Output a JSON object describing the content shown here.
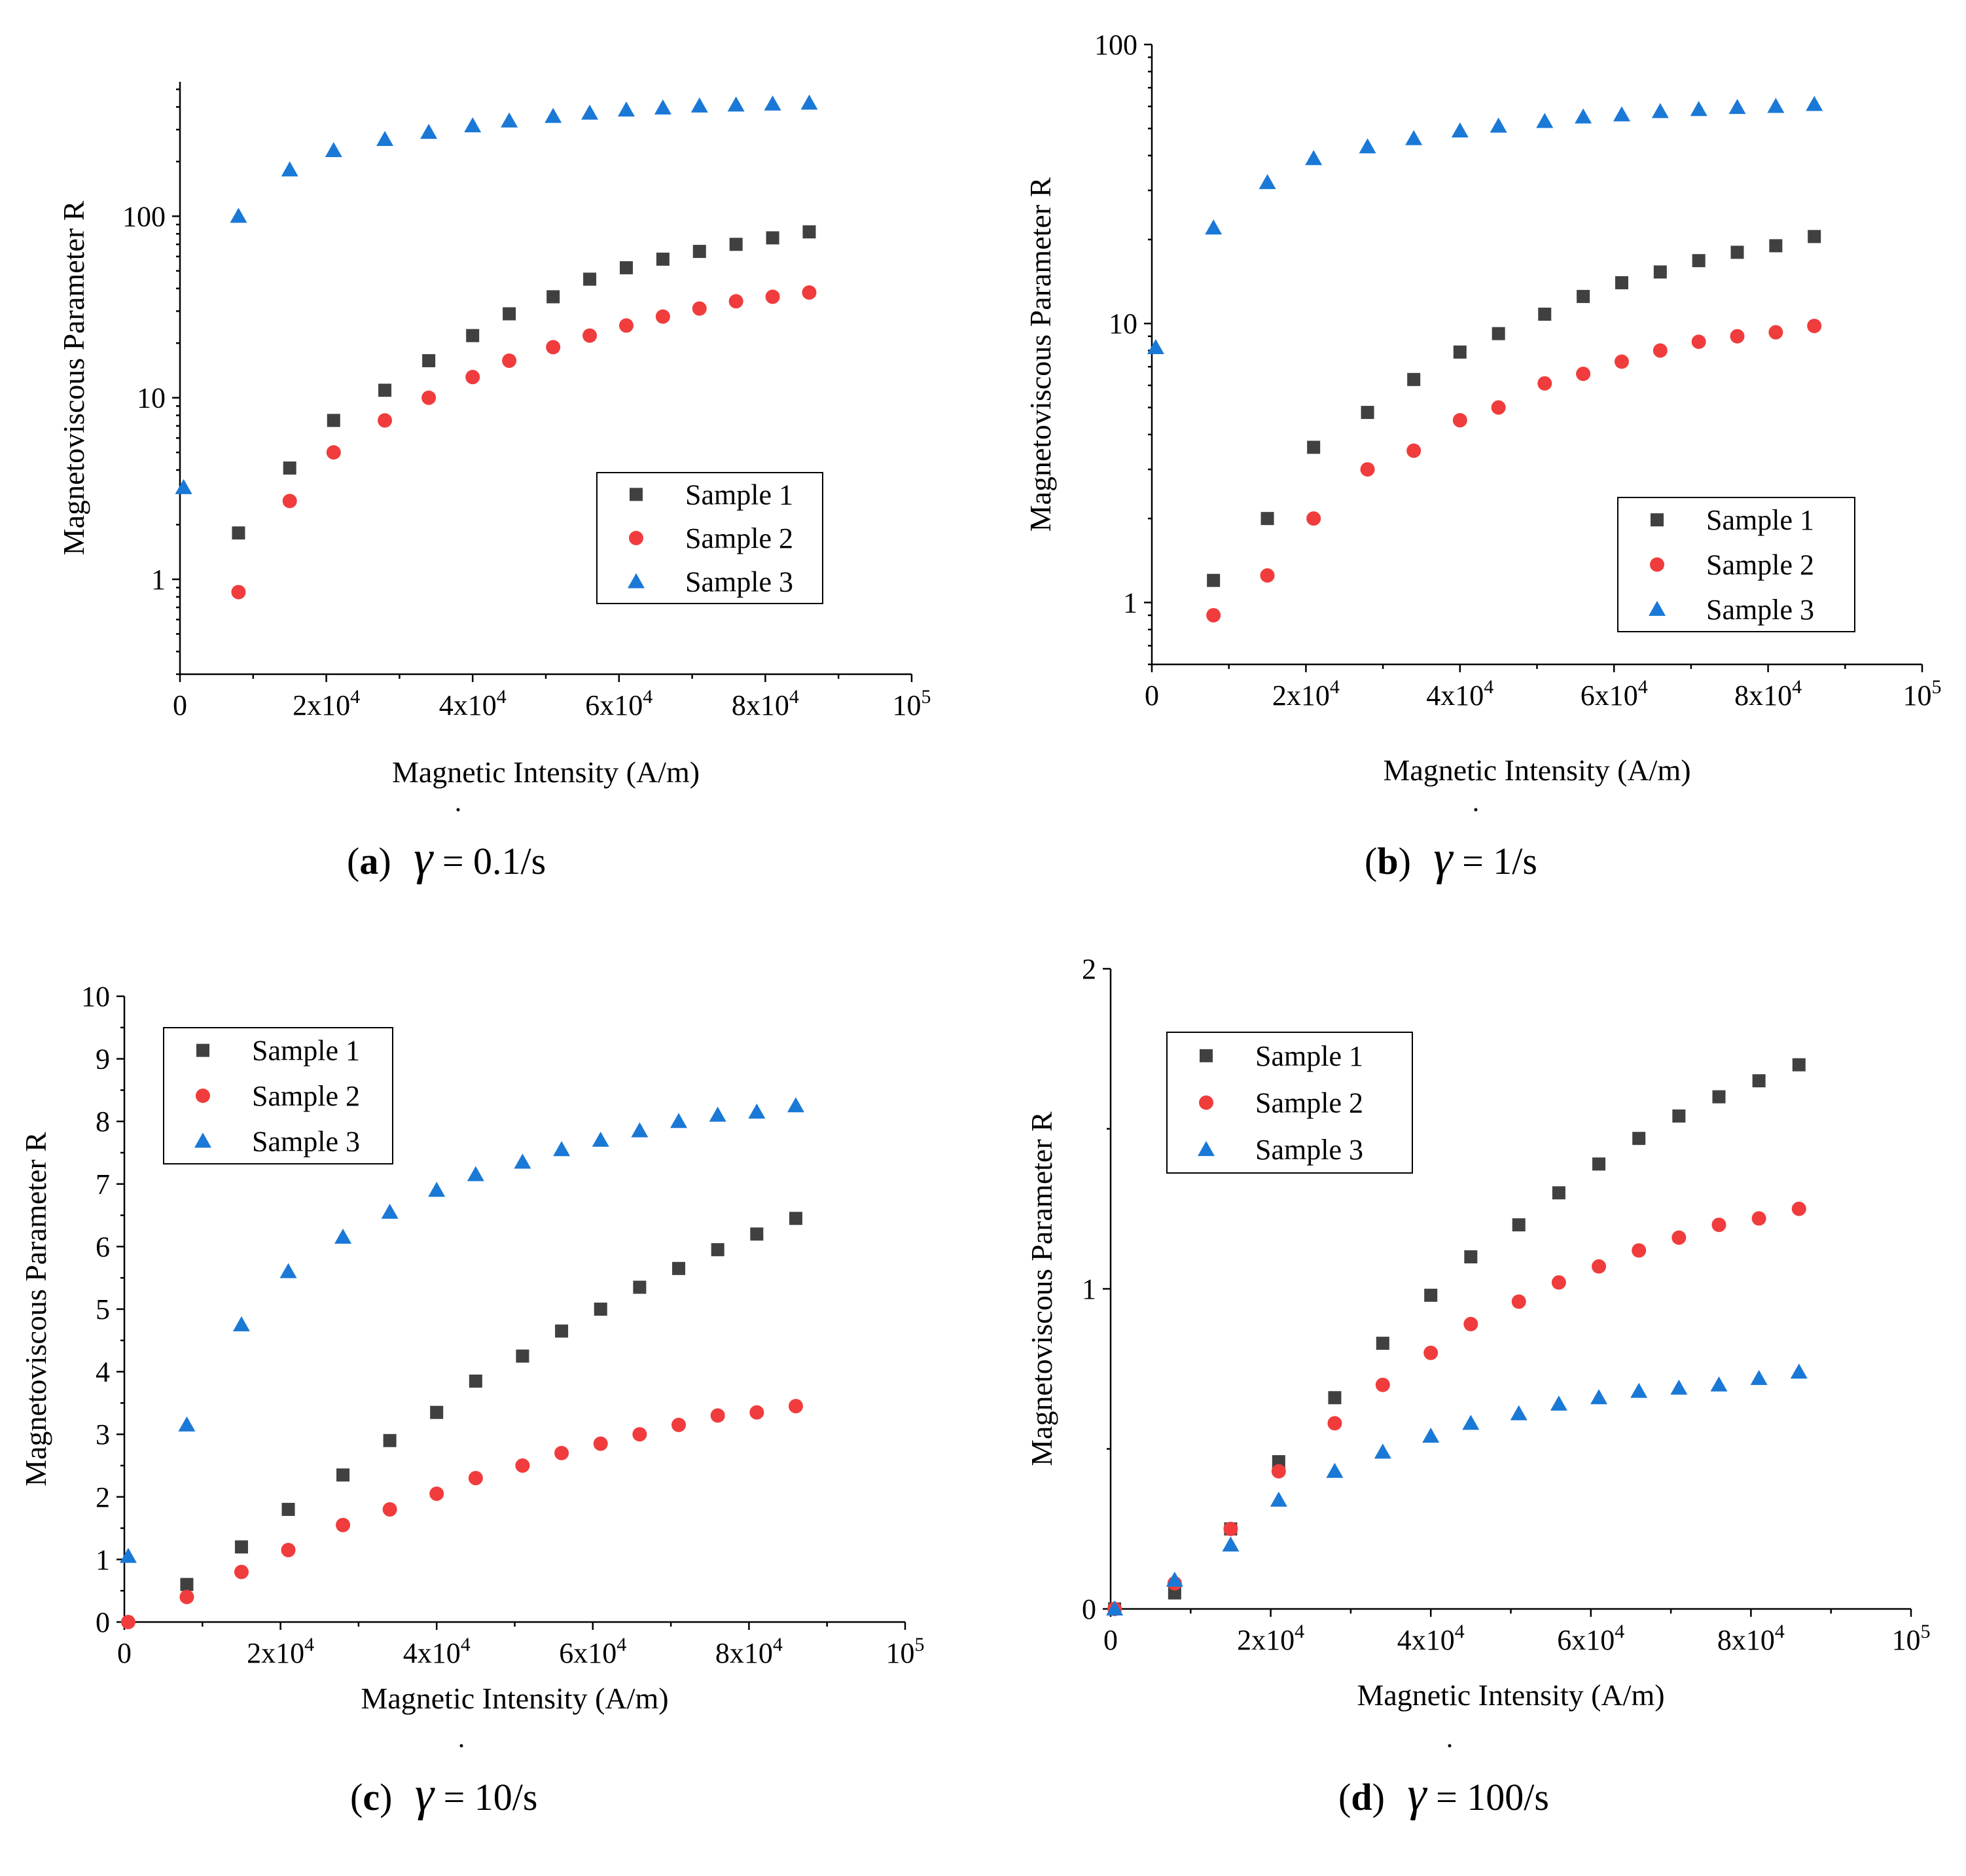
{
  "figure": {
    "panels": [
      {
        "tag": "(a)",
        "symbol": "γ",
        "suffix": " = 0.1/s"
      },
      {
        "tag": "(b)",
        "symbol": "γ",
        "suffix": " = 1/s"
      },
      {
        "tag": "(c)",
        "symbol": "γ",
        "suffix": " = 10/s"
      },
      {
        "tag": "(d)",
        "symbol": "γ",
        "suffix": " = 100/s"
      }
    ]
  },
  "colors": {
    "sample1": "#404040",
    "sample2": "#f03c3c",
    "sample3": "#1a78d6"
  },
  "chart_data": [
    {
      "type": "scatter",
      "title": "γ = 0.1/s",
      "xlabel": "Magnetic Intensity (A/m)",
      "ylabel": "Magnetoviscous Parameter R",
      "yscale": "log",
      "xlim": [
        0,
        100000
      ],
      "ylim": [
        0.3,
        550
      ],
      "xticks": [
        {
          "v": 0,
          "m": "0"
        },
        {
          "v": 20000,
          "m": "2x10",
          "e": "4"
        },
        {
          "v": 40000,
          "m": "4x10",
          "e": "4"
        },
        {
          "v": 60000,
          "m": "6x10",
          "e": "4"
        },
        {
          "v": 80000,
          "m": "8x10",
          "e": "4"
        },
        {
          "v": 100000,
          "m": "10",
          "e": "5"
        }
      ],
      "yticks": [
        {
          "v": 1,
          "m": "1"
        },
        {
          "v": 10,
          "m": "10"
        },
        {
          "v": 100,
          "m": "100"
        }
      ],
      "legend": "lower-right",
      "series": [
        {
          "name": "Sample 1",
          "marker": "square",
          "color": "#404040",
          "x": [
            8000,
            15000,
            21000,
            28000,
            34000,
            40000,
            45000,
            51000,
            56000,
            61000,
            66000,
            71000,
            76000,
            81000,
            86000
          ],
          "y": [
            1.8,
            4.1,
            7.5,
            11,
            16,
            22,
            29,
            36,
            45,
            52,
            58,
            64,
            70,
            76,
            82
          ]
        },
        {
          "name": "Sample 2",
          "marker": "circle",
          "color": "#f03c3c",
          "x": [
            8000,
            15000,
            21000,
            28000,
            34000,
            40000,
            45000,
            51000,
            56000,
            61000,
            66000,
            71000,
            76000,
            81000,
            86000
          ],
          "y": [
            0.85,
            2.7,
            5,
            7.5,
            10,
            13,
            16,
            19,
            22,
            25,
            28,
            31,
            34,
            36,
            38
          ]
        },
        {
          "name": "Sample 3",
          "marker": "triangle",
          "color": "#1a78d6",
          "x": [
            500,
            8000,
            15000,
            21000,
            28000,
            34000,
            40000,
            45000,
            51000,
            56000,
            61000,
            66000,
            71000,
            76000,
            81000,
            86000
          ],
          "y": [
            3.2,
            100,
            180,
            230,
            265,
            290,
            315,
            335,
            355,
            370,
            385,
            395,
            405,
            410,
            415,
            420
          ]
        }
      ]
    },
    {
      "type": "scatter",
      "title": "γ = 1/s",
      "xlabel": "Magnetic Intensity (A/m)",
      "ylabel": "Magnetoviscous Parameter R",
      "yscale": "log",
      "xlim": [
        0,
        100000
      ],
      "ylim": [
        0.6,
        100
      ],
      "xticks": [
        {
          "v": 0,
          "m": "0"
        },
        {
          "v": 20000,
          "m": "2x10",
          "e": "4"
        },
        {
          "v": 40000,
          "m": "4x10",
          "e": "4"
        },
        {
          "v": 60000,
          "m": "6x10",
          "e": "4"
        },
        {
          "v": 80000,
          "m": "8x10",
          "e": "4"
        },
        {
          "v": 100000,
          "m": "10",
          "e": "5"
        }
      ],
      "yticks": [
        {
          "v": 1,
          "m": "1"
        },
        {
          "v": 10,
          "m": "10"
        },
        {
          "v": 100,
          "m": "100"
        }
      ],
      "legend": "lower-right",
      "series": [
        {
          "name": "Sample 1",
          "marker": "square",
          "color": "#404040",
          "x": [
            8000,
            15000,
            21000,
            28000,
            34000,
            40000,
            45000,
            51000,
            56000,
            61000,
            66000,
            71000,
            76000,
            81000,
            86000
          ],
          "y": [
            1.2,
            2,
            3.6,
            4.8,
            6.3,
            7.9,
            9.2,
            10.8,
            12.5,
            14,
            15.3,
            16.8,
            18,
            19,
            20.5
          ]
        },
        {
          "name": "Sample 2",
          "marker": "circle",
          "color": "#f03c3c",
          "x": [
            8000,
            15000,
            21000,
            28000,
            34000,
            40000,
            45000,
            51000,
            56000,
            61000,
            66000,
            71000,
            76000,
            81000,
            86000
          ],
          "y": [
            0.9,
            1.25,
            2,
            3,
            3.5,
            4.5,
            5,
            6.1,
            6.6,
            7.3,
            8,
            8.6,
            9,
            9.3,
            9.8
          ]
        },
        {
          "name": "Sample 3",
          "marker": "triangle",
          "color": "#1a78d6",
          "x": [
            500,
            8000,
            15000,
            21000,
            28000,
            34000,
            40000,
            45000,
            51000,
            56000,
            61000,
            66000,
            71000,
            76000,
            81000,
            86000
          ],
          "y": [
            8.2,
            22,
            32,
            39,
            43,
            46,
            49,
            51,
            53,
            55,
            56,
            57.5,
            58.5,
            59.5,
            60,
            61
          ]
        }
      ]
    },
    {
      "type": "scatter",
      "title": "γ = 10/s",
      "xlabel": "Magnetic Intensity (A/m)",
      "ylabel": "Magnetoviscous Parameter R",
      "yscale": "linear",
      "xlim": [
        0,
        100000
      ],
      "ylim": [
        0,
        10
      ],
      "xticks": [
        {
          "v": 0,
          "m": "0"
        },
        {
          "v": 20000,
          "m": "2x10",
          "e": "4"
        },
        {
          "v": 40000,
          "m": "4x10",
          "e": "4"
        },
        {
          "v": 60000,
          "m": "6x10",
          "e": "4"
        },
        {
          "v": 80000,
          "m": "8x10",
          "e": "4"
        },
        {
          "v": 100000,
          "m": "10",
          "e": "5"
        }
      ],
      "yticks": [
        {
          "v": 0,
          "m": "0"
        },
        {
          "v": 1,
          "m": "1"
        },
        {
          "v": 2,
          "m": "2"
        },
        {
          "v": 3,
          "m": "3"
        },
        {
          "v": 4,
          "m": "4"
        },
        {
          "v": 5,
          "m": "5"
        },
        {
          "v": 6,
          "m": "6"
        },
        {
          "v": 7,
          "m": "7"
        },
        {
          "v": 8,
          "m": "8"
        },
        {
          "v": 9,
          "m": "9"
        },
        {
          "v": 10,
          "m": "10"
        }
      ],
      "legend": "upper-left",
      "series": [
        {
          "name": "Sample 1",
          "marker": "square",
          "color": "#404040",
          "x": [
            8000,
            15000,
            21000,
            28000,
            34000,
            40000,
            45000,
            51000,
            56000,
            61000,
            66000,
            71000,
            76000,
            81000,
            86000
          ],
          "y": [
            0.6,
            1.2,
            1.8,
            2.35,
            2.9,
            3.35,
            3.85,
            4.25,
            4.65,
            5,
            5.35,
            5.65,
            5.95,
            6.2,
            6.45
          ]
        },
        {
          "name": "Sample 2",
          "marker": "circle",
          "color": "#f03c3c",
          "x": [
            500,
            8000,
            15000,
            21000,
            28000,
            34000,
            40000,
            45000,
            51000,
            56000,
            61000,
            66000,
            71000,
            76000,
            81000,
            86000
          ],
          "y": [
            0,
            0.4,
            0.8,
            1.15,
            1.55,
            1.8,
            2.05,
            2.3,
            2.5,
            2.7,
            2.85,
            3,
            3.15,
            3.3,
            3.35,
            3.45
          ]
        },
        {
          "name": "Sample 3",
          "marker": "triangle",
          "color": "#1a78d6",
          "x": [
            500,
            8000,
            15000,
            21000,
            28000,
            34000,
            40000,
            45000,
            51000,
            56000,
            61000,
            66000,
            71000,
            76000,
            81000,
            86000
          ],
          "y": [
            1.05,
            3.15,
            4.75,
            5.6,
            6.15,
            6.55,
            6.9,
            7.15,
            7.35,
            7.55,
            7.7,
            7.85,
            8,
            8.1,
            8.15,
            8.25
          ]
        }
      ]
    },
    {
      "type": "scatter",
      "title": "γ = 100/s",
      "xlabel": "Magnetic Intensity (A/m)",
      "ylabel": "Magnetoviscous Parameter R",
      "yscale": "linear",
      "xlim": [
        0,
        100000
      ],
      "ylim": [
        0,
        2
      ],
      "xticks": [
        {
          "v": 0,
          "m": "0"
        },
        {
          "v": 20000,
          "m": "2x10",
          "e": "4"
        },
        {
          "v": 40000,
          "m": "4x10",
          "e": "4"
        },
        {
          "v": 60000,
          "m": "6x10",
          "e": "4"
        },
        {
          "v": 80000,
          "m": "8x10",
          "e": "4"
        },
        {
          "v": 100000,
          "m": "10",
          "e": "5"
        }
      ],
      "yticks": [
        {
          "v": 0,
          "m": "0"
        },
        {
          "v": 1,
          "m": "1"
        },
        {
          "v": 2,
          "m": "2"
        }
      ],
      "legend": "upper-left",
      "series": [
        {
          "name": "Sample 1",
          "marker": "square",
          "color": "#404040",
          "x": [
            500,
            8000,
            15000,
            21000,
            28000,
            34000,
            40000,
            45000,
            51000,
            56000,
            61000,
            66000,
            71000,
            76000,
            81000,
            86000
          ],
          "y": [
            0,
            0.05,
            0.25,
            0.46,
            0.66,
            0.83,
            0.98,
            1.1,
            1.2,
            1.3,
            1.39,
            1.47,
            1.54,
            1.6,
            1.65,
            1.7
          ]
        },
        {
          "name": "Sample 2",
          "marker": "circle",
          "color": "#f03c3c",
          "x": [
            500,
            8000,
            15000,
            21000,
            28000,
            34000,
            40000,
            45000,
            51000,
            56000,
            61000,
            66000,
            71000,
            76000,
            81000,
            86000
          ],
          "y": [
            0,
            0.08,
            0.25,
            0.43,
            0.58,
            0.7,
            0.8,
            0.89,
            0.96,
            1.02,
            1.07,
            1.12,
            1.16,
            1.2,
            1.22,
            1.25
          ]
        },
        {
          "name": "Sample 3",
          "marker": "triangle",
          "color": "#1a78d6",
          "x": [
            500,
            8000,
            15000,
            21000,
            28000,
            34000,
            40000,
            45000,
            51000,
            56000,
            61000,
            66000,
            71000,
            76000,
            81000,
            86000
          ],
          "y": [
            0,
            0.09,
            0.2,
            0.34,
            0.43,
            0.49,
            0.54,
            0.58,
            0.61,
            0.64,
            0.66,
            0.68,
            0.69,
            0.7,
            0.72,
            0.74
          ]
        }
      ]
    }
  ]
}
